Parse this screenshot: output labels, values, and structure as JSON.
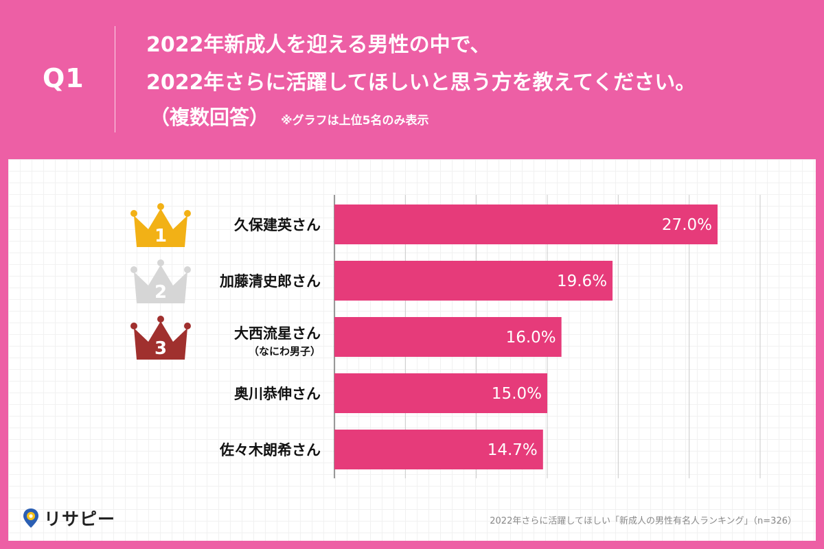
{
  "header": {
    "q_label": "Q1",
    "line1": "2022年新成人を迎える男性の中で、",
    "line2": "2022年さらに活躍してほしいと思う方を教えてください。",
    "multi": "（複数回答）",
    "note": "※グラフは上位5名のみ表示"
  },
  "chart_data": {
    "type": "bar",
    "orientation": "horizontal",
    "categories": [
      "久保建英さん",
      "加藤清史郎さん",
      "大西流星さん",
      "奥川恭伸さん",
      "佐々木朗希さん"
    ],
    "category_sublabels": [
      "",
      "",
      "（なにわ男子）",
      "",
      ""
    ],
    "values": [
      27.0,
      19.6,
      16.0,
      15.0,
      14.7
    ],
    "value_labels": [
      "27.0%",
      "19.6%",
      "16.0%",
      "15.0%",
      "14.7%"
    ],
    "ranks": [
      "1",
      "2",
      "3"
    ],
    "rank_colors": [
      "#F2B116",
      "#D6D6D6",
      "#A0302E"
    ],
    "bar_color": "#E63B7A",
    "xlim": [
      0,
      30
    ],
    "grid": true
  },
  "footer": {
    "logo_text": "リサピー",
    "caption": "2022年さらに活躍してほしい「新成人の男性有名人ランキング」（n=326）"
  }
}
